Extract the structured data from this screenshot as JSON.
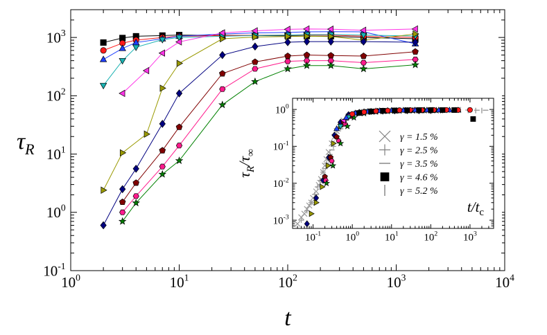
{
  "chart_data": [
    {
      "type": "scatter",
      "x_scale": "log",
      "y_scale": "log",
      "xlim": [
        1,
        10000
      ],
      "ylim": [
        0.1,
        3000
      ],
      "xlabel": "t",
      "ylabel": "τ",
      "ylabel_sub": "R",
      "x_ticks": [
        {
          "value": 1,
          "base": "10",
          "exp": "0"
        },
        {
          "value": 10,
          "base": "10",
          "exp": "1"
        },
        {
          "value": 100,
          "base": "10",
          "exp": "2"
        },
        {
          "value": 1000,
          "base": "10",
          "exp": "3"
        },
        {
          "value": 10000,
          "base": "10",
          "exp": "4"
        }
      ],
      "y_ticks": [
        {
          "value": 0.1,
          "base": "10",
          "exp": "-1"
        },
        {
          "value": 1,
          "base": "10",
          "exp": "0"
        },
        {
          "value": 10,
          "base": "10",
          "exp": "1"
        },
        {
          "value": 100,
          "base": "10",
          "exp": "2"
        },
        {
          "value": 1000,
          "base": "10",
          "exp": "3"
        }
      ],
      "series": [
        {
          "marker": "square",
          "color": "#000000",
          "x": [
            2,
            3,
            4,
            7,
            10,
            25,
            50,
            100,
            150,
            250,
            500,
            1500
          ],
          "y": [
            820,
            980,
            1050,
            1080,
            1100,
            1090,
            1080,
            1070,
            1060,
            1050,
            1000,
            950
          ]
        },
        {
          "marker": "circle",
          "color": "#ff1a1a",
          "x": [
            2,
            3,
            4,
            7,
            10,
            25,
            50,
            100,
            150,
            250,
            500,
            1500
          ],
          "y": [
            600,
            800,
            900,
            1000,
            1050,
            1080,
            1090,
            1100,
            1110,
            1100,
            1050,
            1000
          ]
        },
        {
          "marker": "triangle-up",
          "color": "#1f3fff",
          "x": [
            2,
            3,
            4,
            7,
            10,
            25,
            50,
            100,
            150,
            250,
            500,
            1500
          ],
          "y": [
            420,
            650,
            820,
            950,
            1050,
            1150,
            1200,
            1220,
            1250,
            1260,
            1250,
            780
          ]
        },
        {
          "marker": "triangle-down",
          "color": "#1ab2b2",
          "x": [
            2,
            3,
            4,
            7,
            10,
            25,
            50,
            100,
            150,
            250,
            500,
            1500
          ],
          "y": [
            150,
            400,
            680,
            920,
            1000,
            1050,
            1080,
            1100,
            1120,
            1120,
            1100,
            1060
          ]
        },
        {
          "marker": "triangle-left",
          "color": "#ff33e6",
          "x": [
            3,
            5,
            7,
            10,
            25,
            50,
            100,
            150,
            250,
            500,
            1500
          ],
          "y": [
            110,
            270,
            540,
            840,
            1200,
            1300,
            1380,
            1400,
            1390,
            1330,
            1400
          ]
        },
        {
          "marker": "triangle-right",
          "color": "#999900",
          "x": [
            2,
            3,
            5,
            7,
            10,
            25,
            50,
            100,
            150,
            250,
            500,
            1500
          ],
          "y": [
            2.4,
            10.5,
            22,
            135,
            360,
            950,
            1020,
            1040,
            1050,
            1040,
            900,
            1150
          ]
        },
        {
          "marker": "diamond",
          "color": "#000080",
          "x": [
            2,
            3,
            4,
            7,
            10,
            25,
            50,
            100,
            150,
            250,
            500,
            1500
          ],
          "y": [
            0.6,
            2.5,
            5.6,
            33,
            110,
            500,
            700,
            830,
            850,
            850,
            850,
            830
          ]
        },
        {
          "marker": "pentagon",
          "color": "#800000",
          "x": [
            3,
            4,
            7,
            10,
            25,
            50,
            100,
            150,
            250,
            500,
            1500
          ],
          "y": [
            1.5,
            3.2,
            11.5,
            29,
            240,
            380,
            480,
            500,
            490,
            480,
            570
          ]
        },
        {
          "marker": "hexagon",
          "color": "#ff1a8c",
          "x": [
            3,
            4,
            7,
            10,
            25,
            50,
            100,
            150,
            250,
            500,
            1500
          ],
          "y": [
            1.0,
            1.9,
            6.1,
            14,
            130,
            290,
            390,
            400,
            400,
            370,
            420
          ]
        },
        {
          "marker": "star",
          "color": "#008000",
          "x": [
            3,
            4,
            7,
            10,
            25,
            50,
            100,
            150,
            250,
            500,
            1500
          ],
          "y": [
            0.7,
            1.45,
            4.5,
            7.7,
            70,
            175,
            290,
            330,
            330,
            290,
            340
          ]
        }
      ]
    },
    {
      "type": "scatter",
      "x_scale": "log",
      "y_scale": "log",
      "xlim": [
        0.03,
        4000
      ],
      "ylim": [
        0.0006,
        2
      ],
      "xlabel": "t/t",
      "xlabel_sub": "c",
      "ylabel": "τ",
      "ylabel_sub1": "R",
      "ylabel_mid": "/τ",
      "ylabel_sub2": "∞",
      "legend_position": "lower-right",
      "x_ticks": [
        {
          "value": 0.1,
          "base": "10",
          "exp": "-1"
        },
        {
          "value": 1,
          "base": "10",
          "exp": "0"
        },
        {
          "value": 10,
          "base": "10",
          "exp": "1"
        },
        {
          "value": 100,
          "base": "10",
          "exp": "2"
        },
        {
          "value": 1000,
          "base": "10",
          "exp": "3"
        }
      ],
      "y_ticks": [
        {
          "value": 0.001,
          "base": "10",
          "exp": "-3"
        },
        {
          "value": 0.01,
          "base": "10",
          "exp": "-2"
        },
        {
          "value": 0.1,
          "base": "10",
          "exp": "-1"
        },
        {
          "value": 1,
          "base": "10",
          "exp": "0"
        }
      ],
      "legend": [
        {
          "marker": "x",
          "color": "#808080",
          "label": "γ = 1.5 %"
        },
        {
          "marker": "plus",
          "color": "#808080",
          "label": "γ = 2.5 %"
        },
        {
          "marker": "hline",
          "color": "#808080",
          "label": "γ = 3.5 %"
        },
        {
          "marker": "square",
          "color": "#000000",
          "label": "γ = 4.6 %"
        },
        {
          "marker": "vline",
          "color": "#808080",
          "label": "γ = 5.2 %"
        }
      ],
      "gray_series": [
        {
          "marker": "x",
          "color": "#999999",
          "x": [
            0.04,
            0.05,
            0.06,
            0.07,
            0.08,
            0.09,
            0.1,
            0.12,
            0.14,
            0.16,
            0.18,
            0.2,
            0.22,
            0.25,
            0.3,
            0.35,
            0.4,
            0.5,
            0.6,
            0.8,
            1,
            1.5,
            2,
            3,
            5,
            8,
            12,
            20,
            30,
            50,
            80,
            120,
            200,
            300,
            500
          ],
          "y": [
            0.0008,
            0.0012,
            0.0015,
            0.002,
            0.0025,
            0.003,
            0.004,
            0.006,
            0.009,
            0.013,
            0.02,
            0.03,
            0.045,
            0.07,
            0.12,
            0.18,
            0.26,
            0.38,
            0.5,
            0.65,
            0.72,
            0.8,
            0.85,
            0.88,
            0.9,
            0.92,
            0.93,
            0.94,
            0.95,
            0.95,
            0.95,
            0.96,
            0.96,
            0.96,
            0.97
          ]
        },
        {
          "marker": "plus",
          "color": "#999999",
          "x": [
            0.05,
            0.07,
            0.09,
            0.11,
            0.13,
            0.15,
            0.18,
            0.22,
            0.27,
            0.33,
            0.4,
            0.5,
            0.7,
            1,
            1.5,
            2.5,
            4,
            7,
            12,
            20,
            35,
            60,
            100,
            180,
            300
          ],
          "y": [
            0.001,
            0.0018,
            0.003,
            0.005,
            0.008,
            0.012,
            0.02,
            0.035,
            0.06,
            0.1,
            0.17,
            0.3,
            0.5,
            0.7,
            0.8,
            0.86,
            0.9,
            0.92,
            0.94,
            0.95,
            0.95,
            0.96,
            0.96,
            0.96,
            0.96
          ]
        },
        {
          "marker": "hline",
          "color": "#999999",
          "x": [
            0.12,
            0.2,
            0.3,
            0.5,
            0.8,
            1.2,
            2,
            3,
            5,
            8,
            15,
            30,
            60,
            120,
            250,
            500,
            900,
            1500,
            2500
          ],
          "y": [
            0.005,
            0.025,
            0.08,
            0.3,
            0.6,
            0.78,
            0.88,
            0.92,
            0.94,
            0.95,
            0.96,
            0.96,
            0.97,
            0.97,
            0.97,
            0.96,
            0.96,
            0.95,
            0.95
          ]
        },
        {
          "marker": "vline",
          "color": "#999999",
          "x": [
            0.15,
            0.25,
            0.4,
            0.7,
            1.2,
            2,
            4,
            8,
            15,
            30,
            60,
            120,
            250,
            500,
            900,
            1400,
            2000
          ],
          "y": [
            0.01,
            0.05,
            0.2,
            0.55,
            0.8,
            0.9,
            0.94,
            0.95,
            0.96,
            0.96,
            0.96,
            0.96,
            0.95,
            0.95,
            0.94,
            0.93,
            0.93
          ]
        }
      ],
      "color_series": [
        {
          "marker": "diamond",
          "color": "#000080",
          "x": [
            0.07,
            0.12,
            0.18,
            0.25,
            0.35,
            0.5,
            0.8,
            1.5,
            3,
            6,
            12,
            25,
            50,
            100
          ],
          "y": [
            0.0008,
            0.004,
            0.012,
            0.05,
            0.2,
            0.45,
            0.72,
            0.83,
            0.88,
            0.9,
            0.91,
            0.92,
            0.92,
            0.93
          ]
        },
        {
          "marker": "pentagon",
          "color": "#800000",
          "x": [
            0.2,
            0.28,
            0.4,
            0.6,
            0.9,
            1.5,
            3,
            6,
            12,
            25,
            50,
            100
          ],
          "y": [
            0.015,
            0.05,
            0.18,
            0.45,
            0.7,
            0.82,
            0.88,
            0.9,
            0.92,
            0.93,
            0.93,
            0.93
          ]
        },
        {
          "marker": "hexagon",
          "color": "#ff1a8c",
          "x": [
            0.21,
            0.3,
            0.45,
            0.65,
            1,
            1.7,
            3.5,
            7,
            15,
            30,
            60,
            120
          ],
          "y": [
            0.012,
            0.04,
            0.14,
            0.4,
            0.65,
            0.8,
            0.87,
            0.9,
            0.92,
            0.93,
            0.93,
            0.94
          ]
        },
        {
          "marker": "star",
          "color": "#008000",
          "x": [
            0.22,
            0.32,
            0.5,
            0.75,
            1.1,
            2,
            4,
            8,
            16,
            35,
            70,
            140
          ],
          "y": [
            0.01,
            0.03,
            0.12,
            0.35,
            0.6,
            0.78,
            0.86,
            0.89,
            0.91,
            0.92,
            0.93,
            0.93
          ]
        },
        {
          "marker": "triangle-right",
          "color": "#999900",
          "x": [
            0.09,
            0.12,
            0.17,
            0.24,
            0.33,
            0.5,
            0.8,
            1.5,
            3,
            6,
            12,
            25,
            50,
            100,
            200
          ],
          "y": [
            0.0015,
            0.003,
            0.008,
            0.03,
            0.12,
            0.35,
            0.6,
            0.78,
            0.86,
            0.9,
            0.92,
            0.93,
            0.94,
            0.94,
            0.95
          ]
        },
        {
          "marker": "triangle-left",
          "color": "#ff33e6",
          "x": [
            0.6,
            0.9,
            1.5,
            2.5,
            4,
            7,
            12,
            20,
            35,
            60,
            100
          ],
          "y": [
            0.5,
            0.72,
            0.82,
            0.88,
            0.91,
            0.93,
            0.94,
            0.95,
            0.95,
            0.96,
            0.96
          ]
        },
        {
          "marker": "triangle-down",
          "color": "#1ab2b2",
          "x": [
            0.5,
            0.8,
            1.3,
            2.2,
            4,
            7,
            13,
            25,
            50,
            100,
            200
          ],
          "y": [
            0.35,
            0.62,
            0.8,
            0.88,
            0.91,
            0.93,
            0.94,
            0.95,
            0.95,
            0.96,
            0.96
          ]
        },
        {
          "marker": "triangle-up",
          "color": "#1f3fff",
          "x": [
            0.4,
            0.7,
            1.2,
            2.5,
            5,
            10,
            20,
            40,
            80,
            160,
            300,
            500
          ],
          "y": [
            0.3,
            0.6,
            0.8,
            0.88,
            0.92,
            0.94,
            0.95,
            0.96,
            0.96,
            0.96,
            0.96,
            0.96
          ]
        },
        {
          "marker": "circle",
          "color": "#ff1a1a",
          "x": [
            1,
            2,
            4,
            8,
            16,
            30,
            60,
            120,
            250,
            500,
            1000
          ],
          "y": [
            0.75,
            0.85,
            0.9,
            0.93,
            0.95,
            0.96,
            0.96,
            0.97,
            0.97,
            0.96,
            0.97
          ]
        },
        {
          "marker": "square",
          "color": "#000000",
          "x": [
            1.5,
            3,
            6,
            12,
            25,
            50,
            100,
            200,
            400,
            1200
          ],
          "y": [
            0.8,
            0.88,
            0.92,
            0.94,
            0.95,
            0.96,
            0.96,
            0.96,
            0.96,
            0.55
          ]
        }
      ]
    }
  ]
}
